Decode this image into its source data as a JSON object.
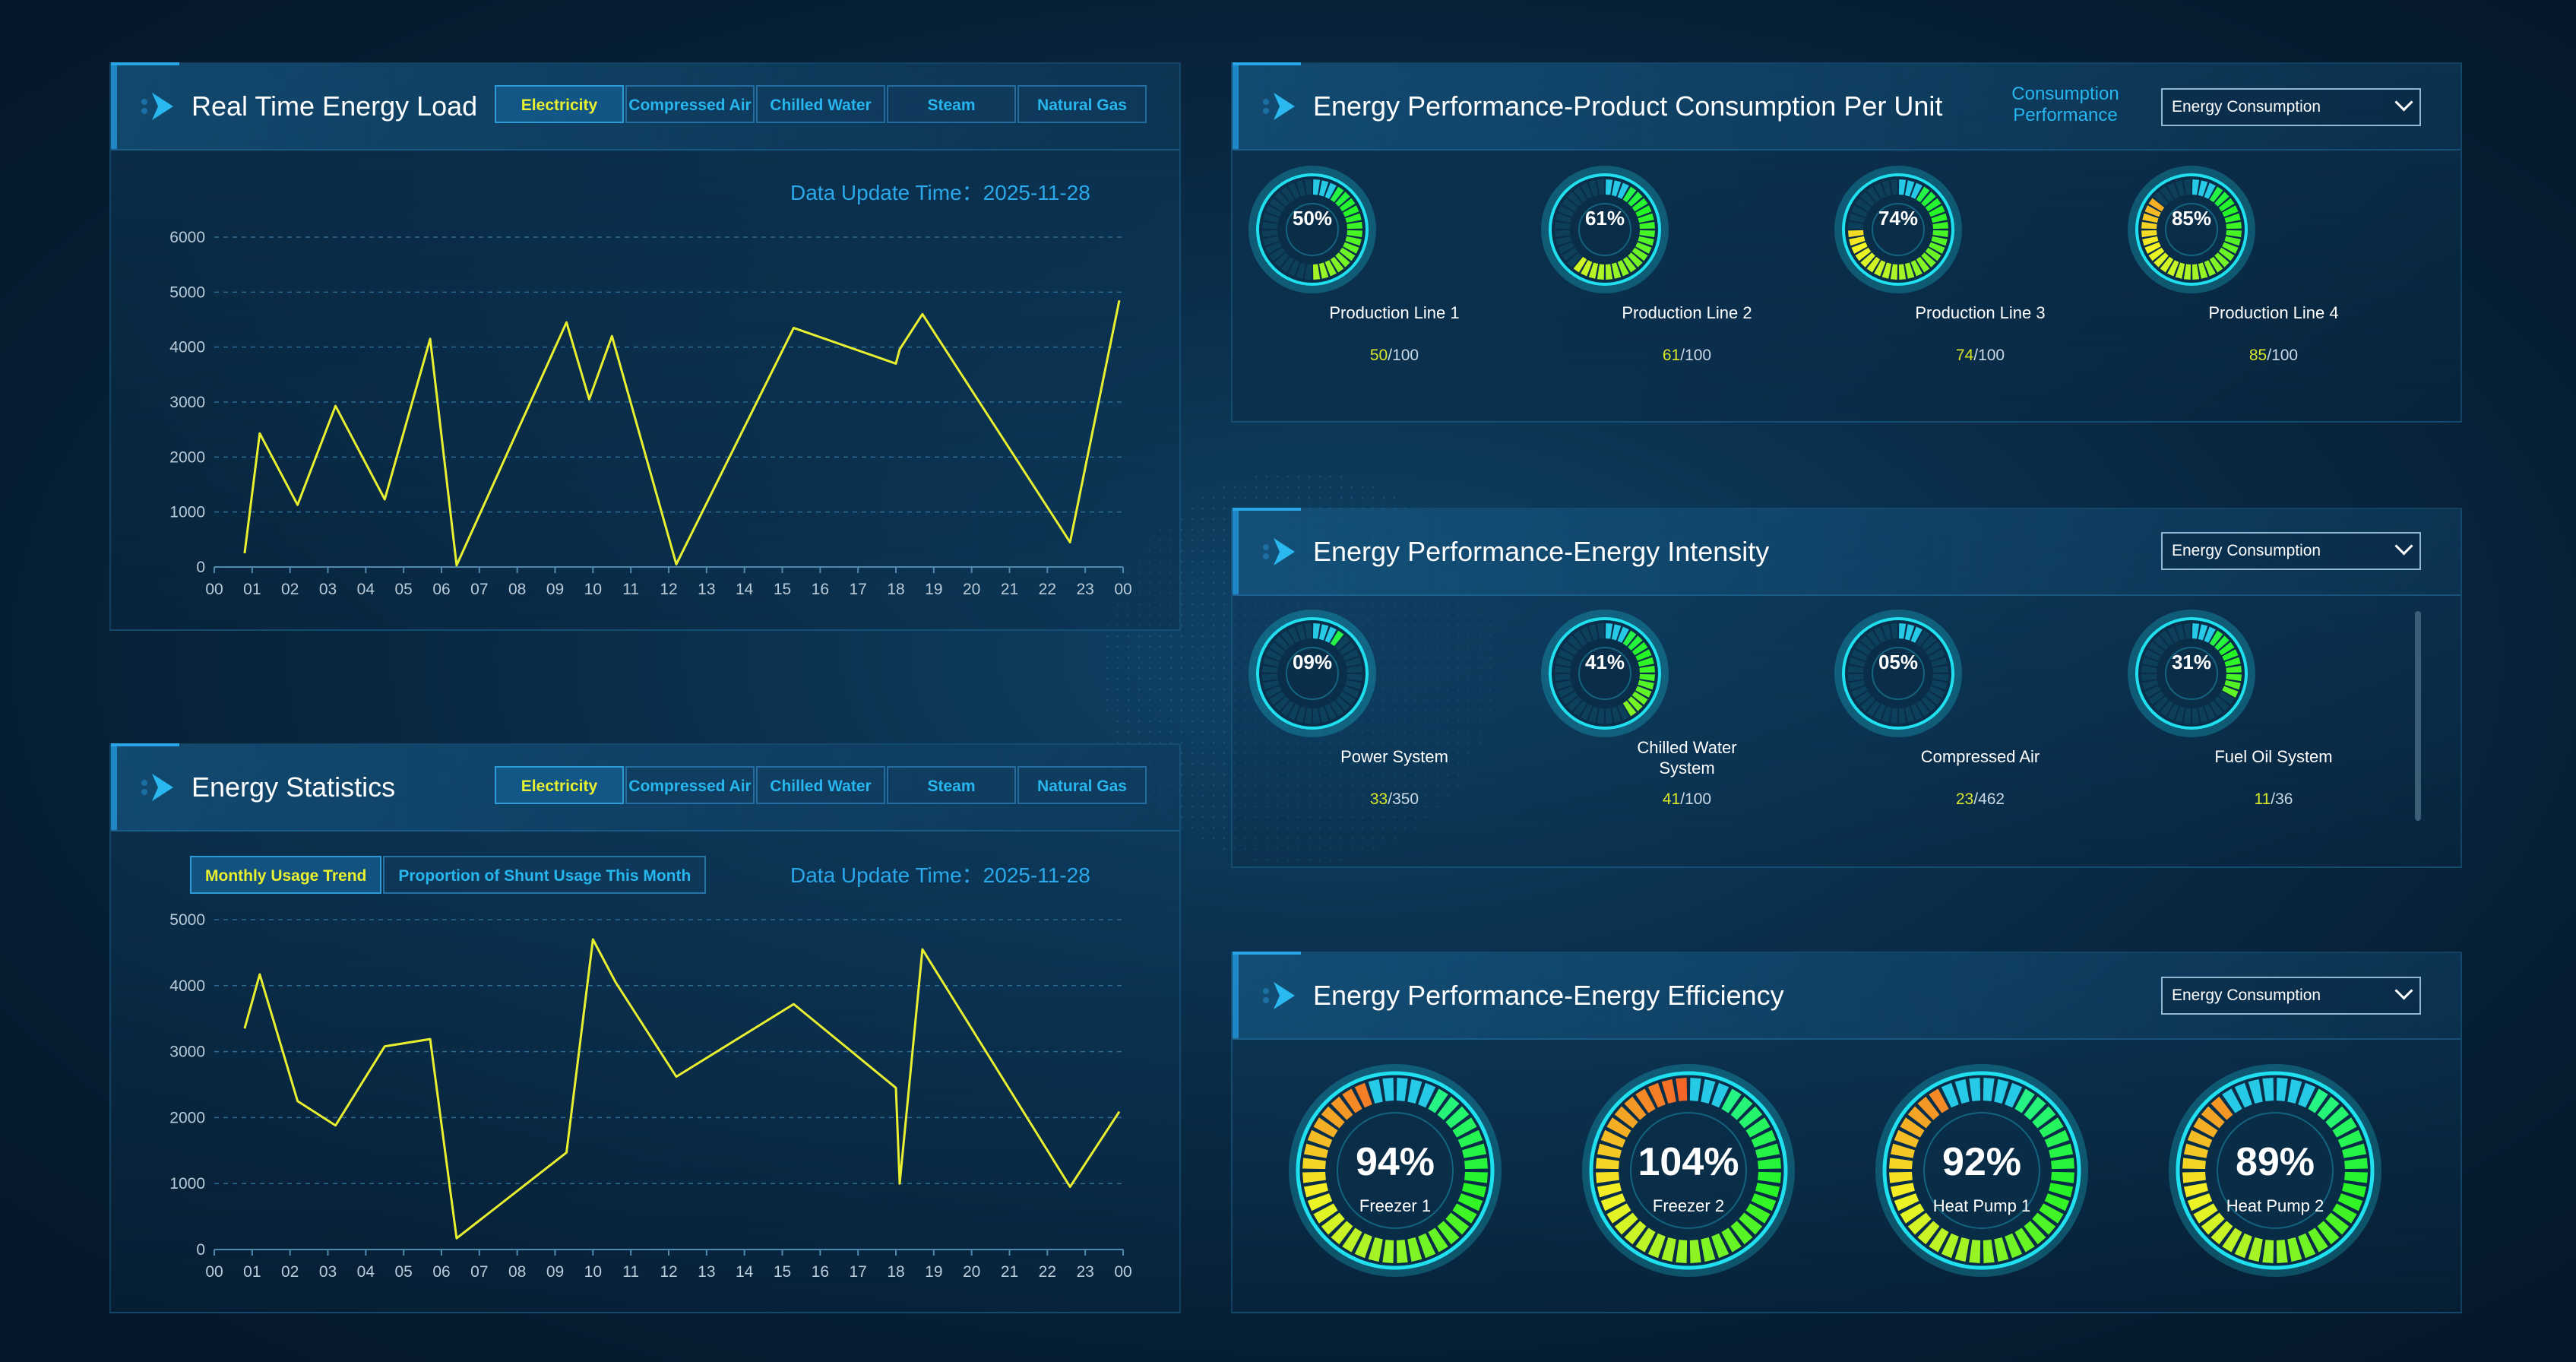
{
  "realtime": {
    "title": "Real Time Energy Load",
    "tabs": [
      "Electricity",
      "Compressed Air",
      "Chilled Water",
      "Steam",
      "Natural Gas"
    ],
    "update_time": "Data Update Time：2025-11-28"
  },
  "stats": {
    "title": "Energy Statistics",
    "tabs": [
      "Electricity",
      "Compressed Air",
      "Chilled Water",
      "Steam",
      "Natural Gas"
    ],
    "subtabs": [
      "Monthly Usage Trend",
      "Proportion of Shunt Usage This Month"
    ],
    "update_time": "Data Update Time：2025-11-28"
  },
  "perf_unit": {
    "title": "Energy Performance-Product Consumption Per Unit",
    "link": "Consumption Performance",
    "select": "Energy Consumption",
    "items": [
      {
        "pct": "50%",
        "label": "Production Line 1",
        "value": "50",
        "total": "/100",
        "fraction": 0.5
      },
      {
        "pct": "61%",
        "label": "Production Line 2",
        "value": "61",
        "total": "/100",
        "fraction": 0.61
      },
      {
        "pct": "74%",
        "label": "Production Line 3",
        "value": "74",
        "total": "/100",
        "fraction": 0.74
      },
      {
        "pct": "85%",
        "label": "Production Line 4",
        "value": "85",
        "total": "/100",
        "fraction": 0.85
      }
    ]
  },
  "perf_intensity": {
    "title": "Energy Performance-Energy Intensity",
    "select": "Energy Consumption",
    "items": [
      {
        "pct": "09%",
        "label": "Power System",
        "value": "33",
        "total": "/350",
        "fraction": 0.09
      },
      {
        "pct": "41%",
        "label": "Chilled Water System",
        "value": "41",
        "total": "/100",
        "fraction": 0.41
      },
      {
        "pct": "05%",
        "label": "Compressed Air",
        "value": "23",
        "total": "/462",
        "fraction": 0.05
      },
      {
        "pct": "31%",
        "label": "Fuel Oil System",
        "value": "11",
        "total": "/36",
        "fraction": 0.31
      }
    ]
  },
  "perf_efficiency": {
    "title": "Energy Performance-Energy Efficiency",
    "select": "Energy Consumption",
    "items": [
      {
        "pct": "94%",
        "label": "Freezer 1",
        "fraction": 0.94
      },
      {
        "pct": "104%",
        "label": "Freezer 2",
        "fraction": 1.04
      },
      {
        "pct": "92%",
        "label": "Heat Pump 1",
        "fraction": 0.92
      },
      {
        "pct": "89%",
        "label": "Heat Pump 2",
        "fraction": 0.89
      }
    ]
  },
  "colors": {
    "line": "#e8f030",
    "accent": "#27b6ee",
    "gauge_ring": "#20e0f0"
  },
  "chart_data": [
    {
      "type": "line",
      "x": [
        "00",
        "01",
        "02",
        "03",
        "04",
        "05",
        "06",
        "07",
        "08",
        "09",
        "10",
        "11",
        "12",
        "13",
        "14",
        "15",
        "16",
        "17",
        "18",
        "19",
        "20",
        "21",
        "22",
        "23",
        "00"
      ],
      "yticks": [
        "0",
        "1000",
        "2000",
        "3000",
        "4000",
        "5000",
        "6000"
      ],
      "ylim": [
        0,
        6000
      ],
      "series": [
        {
          "points": [
            [
              0.8,
              250
            ],
            [
              1.2,
              2430
            ],
            [
              2.2,
              1130
            ],
            [
              3.2,
              2930
            ],
            [
              4.5,
              1230
            ],
            [
              5.7,
              4150
            ],
            [
              6.4,
              30
            ],
            [
              9.3,
              4450
            ],
            [
              9.9,
              3050
            ],
            [
              10.5,
              4200
            ],
            [
              12.2,
              50
            ],
            [
              15.3,
              4350
            ],
            [
              18.0,
              3700
            ],
            [
              18.1,
              3960
            ],
            [
              18.7,
              4600
            ],
            [
              22.6,
              450
            ],
            [
              23.9,
              4850
            ]
          ]
        }
      ],
      "grid": true
    },
    {
      "type": "line",
      "x": [
        "00",
        "01",
        "02",
        "03",
        "04",
        "05",
        "06",
        "07",
        "08",
        "09",
        "10",
        "11",
        "12",
        "13",
        "14",
        "15",
        "16",
        "17",
        "18",
        "19",
        "20",
        "21",
        "22",
        "23",
        "00"
      ],
      "yticks": [
        "0",
        "1000",
        "2000",
        "3000",
        "4000",
        "5000"
      ],
      "ylim": [
        0,
        5000
      ],
      "series": [
        {
          "points": [
            [
              0.8,
              3350
            ],
            [
              1.2,
              4170
            ],
            [
              2.2,
              2250
            ],
            [
              3.2,
              1880
            ],
            [
              4.5,
              3080
            ],
            [
              5.7,
              3190
            ],
            [
              6.4,
              170
            ],
            [
              9.3,
              1470
            ],
            [
              10.0,
              4700
            ],
            [
              10.6,
              4050
            ],
            [
              12.2,
              2620
            ],
            [
              15.3,
              3720
            ],
            [
              18.0,
              2450
            ],
            [
              18.1,
              1000
            ],
            [
              18.7,
              4550
            ],
            [
              22.6,
              950
            ],
            [
              23.9,
              2090
            ]
          ]
        }
      ],
      "grid": true
    }
  ]
}
